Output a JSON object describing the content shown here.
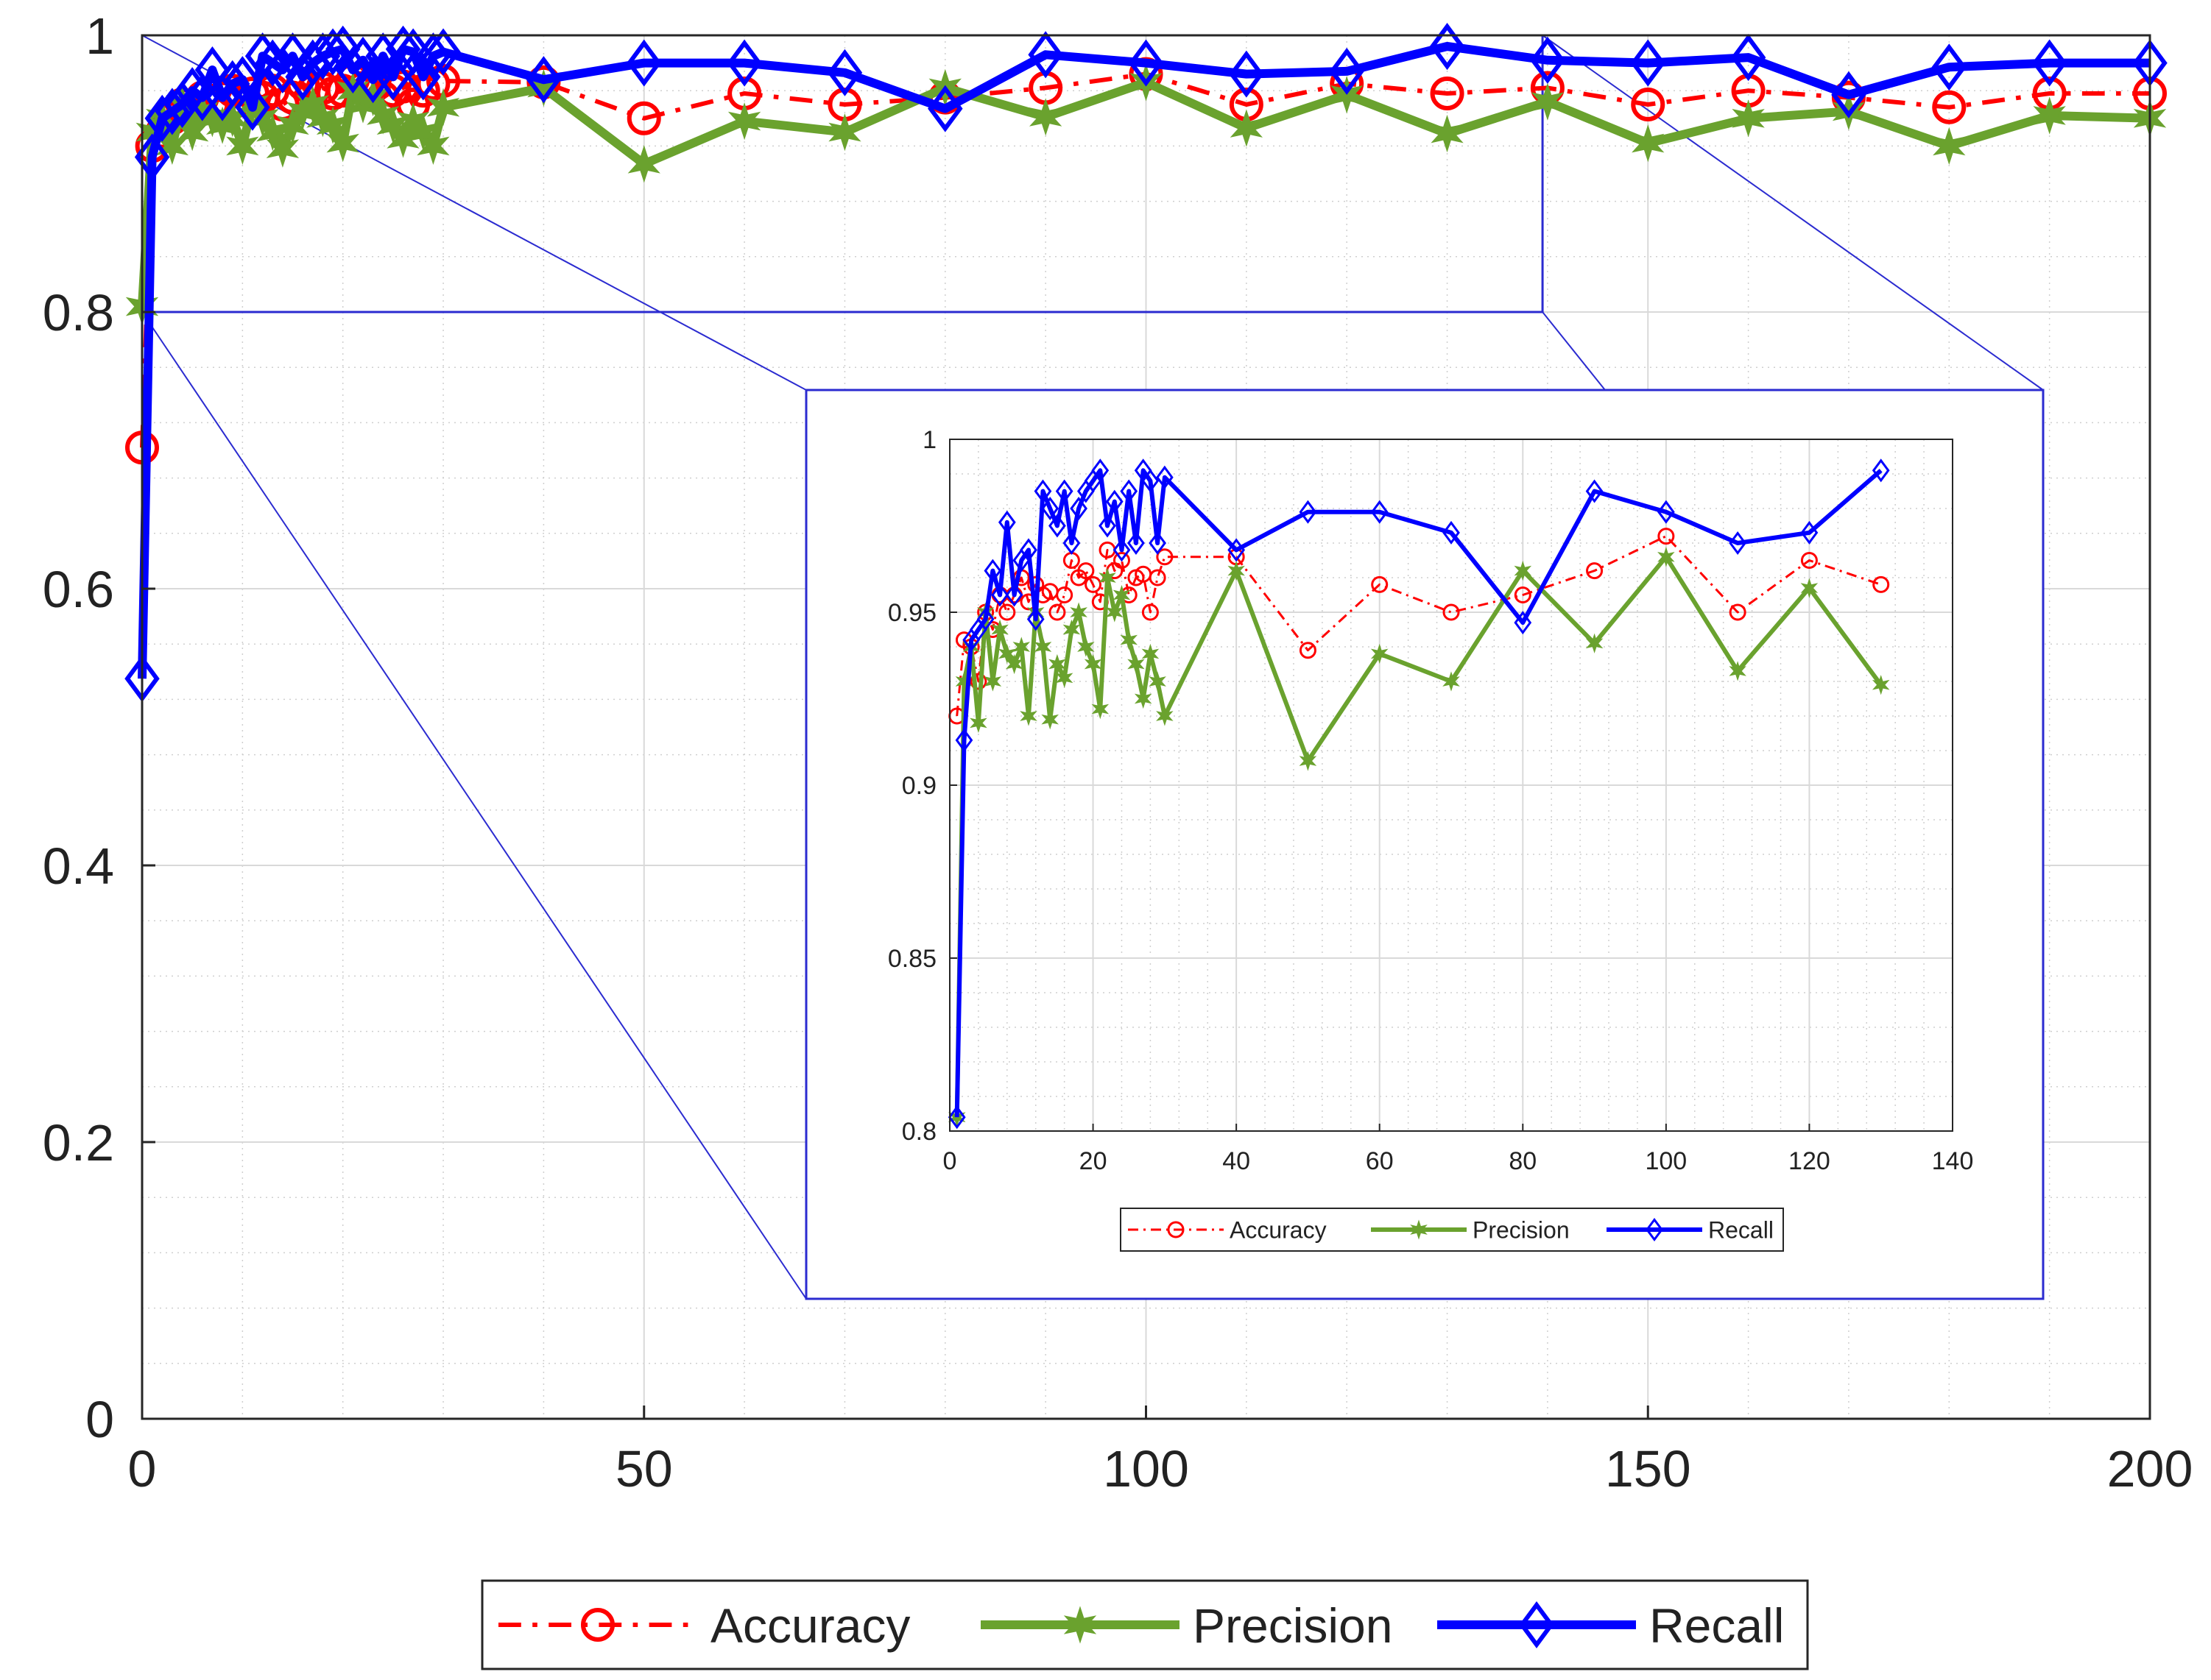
{
  "chart_data": [
    {
      "id": "main",
      "type": "line",
      "title": "",
      "xlabel": "",
      "ylabel": "",
      "xlim": [
        0,
        200
      ],
      "ylim": [
        0,
        1
      ],
      "grid": true,
      "minor_grid": true,
      "legend_position": "bottom-outside",
      "x_ticks": [
        0,
        50,
        100,
        150,
        200
      ],
      "x_tick_labels": [
        "0",
        "50",
        "100",
        "150",
        "200"
      ],
      "y_ticks": [
        0,
        0.2,
        0.4,
        0.6,
        0.8,
        1
      ],
      "y_tick_labels": [
        "0",
        "0.2",
        "0.4",
        "0.6",
        "0.8",
        "1"
      ],
      "x": [
        0,
        1,
        2,
        3,
        4,
        5,
        6,
        7,
        8,
        9,
        10,
        11,
        12,
        13,
        14,
        15,
        16,
        17,
        18,
        19,
        20,
        21,
        22,
        23,
        24,
        25,
        26,
        27,
        28,
        29,
        30,
        40,
        50,
        60,
        70,
        80,
        90,
        100,
        110,
        120,
        130,
        140,
        150,
        160,
        170,
        180,
        190,
        200
      ],
      "series": [
        {
          "name": "Accuracy",
          "color": "#ff0000",
          "marker": "circle",
          "line": "dashdot",
          "values": [
            0.702,
            0.92,
            0.93,
            0.94,
            0.95,
            0.945,
            0.955,
            0.95,
            0.955,
            0.96,
            0.953,
            0.958,
            0.955,
            0.96,
            0.95,
            0.955,
            0.965,
            0.96,
            0.962,
            0.958,
            0.96,
            0.968,
            0.962,
            0.965,
            0.955,
            0.96,
            0.963,
            0.95,
            0.96,
            0.965,
            0.967,
            0.966,
            0.94,
            0.958,
            0.95,
            0.955,
            0.962,
            0.972,
            0.95,
            0.965,
            0.958,
            0.962,
            0.95,
            0.96,
            0.955,
            0.948,
            0.958,
            0.958
          ]
        },
        {
          "name": "Precision",
          "color": "#6aa22e",
          "marker": "star",
          "line": "solid",
          "values": [
            0.804,
            0.93,
            0.94,
            0.92,
            0.95,
            0.93,
            0.945,
            0.94,
            0.935,
            0.94,
            0.92,
            0.95,
            0.94,
            0.93,
            0.918,
            0.935,
            0.945,
            0.95,
            0.94,
            0.935,
            0.922,
            0.96,
            0.95,
            0.955,
            0.942,
            0.935,
            0.925,
            0.938,
            0.93,
            0.92,
            0.948,
            0.962,
            0.907,
            0.938,
            0.93,
            0.962,
            0.941,
            0.966,
            0.933,
            0.957,
            0.929,
            0.952,
            0.922,
            0.94,
            0.945,
            0.92,
            0.942,
            0.94
          ]
        },
        {
          "name": "Recall",
          "color": "#0000ff",
          "marker": "diamond",
          "line": "solid",
          "values": [
            0.535,
            0.912,
            0.94,
            0.945,
            0.95,
            0.96,
            0.955,
            0.975,
            0.955,
            0.965,
            0.968,
            0.948,
            0.985,
            0.98,
            0.975,
            0.985,
            0.97,
            0.98,
            0.985,
            0.988,
            0.99,
            0.975,
            0.982,
            0.968,
            0.985,
            0.97,
            0.99,
            0.988,
            0.97,
            0.985,
            0.988,
            0.968,
            0.98,
            0.98,
            0.973,
            0.947,
            0.986,
            0.98,
            0.972,
            0.974,
            0.992,
            0.982,
            0.98,
            0.984,
            0.957,
            0.977,
            0.98,
            0.98
          ]
        }
      ]
    },
    {
      "id": "inset",
      "type": "line",
      "title": "",
      "xlabel": "",
      "ylabel": "",
      "xlim": [
        0,
        140
      ],
      "ylim": [
        0.8,
        1
      ],
      "grid": true,
      "minor_grid": true,
      "legend_position": "bottom-outside",
      "x_ticks": [
        0,
        20,
        40,
        60,
        80,
        100,
        120,
        140
      ],
      "x_tick_labels": [
        "0",
        "20",
        "40",
        "60",
        "80",
        "100",
        "120",
        "140"
      ],
      "y_ticks": [
        0.8,
        0.85,
        0.9,
        0.95,
        1
      ],
      "y_tick_labels": [
        "0.8",
        "0.85",
        "0.9",
        "0.95",
        "1"
      ],
      "x": [
        1,
        2,
        3,
        4,
        5,
        6,
        7,
        8,
        9,
        10,
        11,
        12,
        13,
        14,
        15,
        16,
        17,
        18,
        19,
        20,
        21,
        22,
        23,
        24,
        25,
        26,
        27,
        28,
        29,
        30,
        40,
        50,
        60,
        70,
        80,
        90,
        100,
        110,
        120,
        130
      ],
      "series": [
        {
          "name": "Accuracy",
          "color": "#ff0000",
          "marker": "circle",
          "line": "dashdot",
          "values": [
            0.92,
            0.942,
            0.94,
            0.93,
            0.95,
            0.945,
            0.955,
            0.95,
            0.955,
            0.96,
            0.953,
            0.958,
            0.955,
            0.956,
            0.95,
            0.955,
            0.965,
            0.96,
            0.962,
            0.958,
            0.953,
            0.968,
            0.962,
            0.965,
            0.955,
            0.96,
            0.961,
            0.95,
            0.96,
            0.966,
            0.966,
            0.939,
            0.958,
            0.95,
            0.955,
            0.962,
            0.972,
            0.95,
            0.965,
            0.958
          ]
        },
        {
          "name": "Precision",
          "color": "#6aa22e",
          "marker": "star",
          "line": "solid",
          "values": [
            0.804,
            0.93,
            0.94,
            0.918,
            0.95,
            0.93,
            0.945,
            0.938,
            0.935,
            0.94,
            0.92,
            0.95,
            0.94,
            0.919,
            0.935,
            0.931,
            0.945,
            0.95,
            0.94,
            0.935,
            0.922,
            0.96,
            0.95,
            0.955,
            0.942,
            0.935,
            0.925,
            0.938,
            0.93,
            0.92,
            0.962,
            0.907,
            0.938,
            0.93,
            0.962,
            0.941,
            0.966,
            0.933,
            0.957,
            0.929
          ]
        },
        {
          "name": "Recall",
          "color": "#0000ff",
          "marker": "diamond",
          "line": "solid",
          "values": [
            0.804,
            0.913,
            0.942,
            0.945,
            0.948,
            0.962,
            0.955,
            0.976,
            0.955,
            0.965,
            0.968,
            0.948,
            0.985,
            0.98,
            0.975,
            0.985,
            0.97,
            0.98,
            0.985,
            0.988,
            0.991,
            0.975,
            0.982,
            0.968,
            0.985,
            0.97,
            0.991,
            0.988,
            0.97,
            0.989,
            0.968,
            0.979,
            0.979,
            0.973,
            0.947,
            0.985,
            0.979,
            0.97,
            0.973,
            0.991
          ]
        }
      ]
    }
  ]
}
